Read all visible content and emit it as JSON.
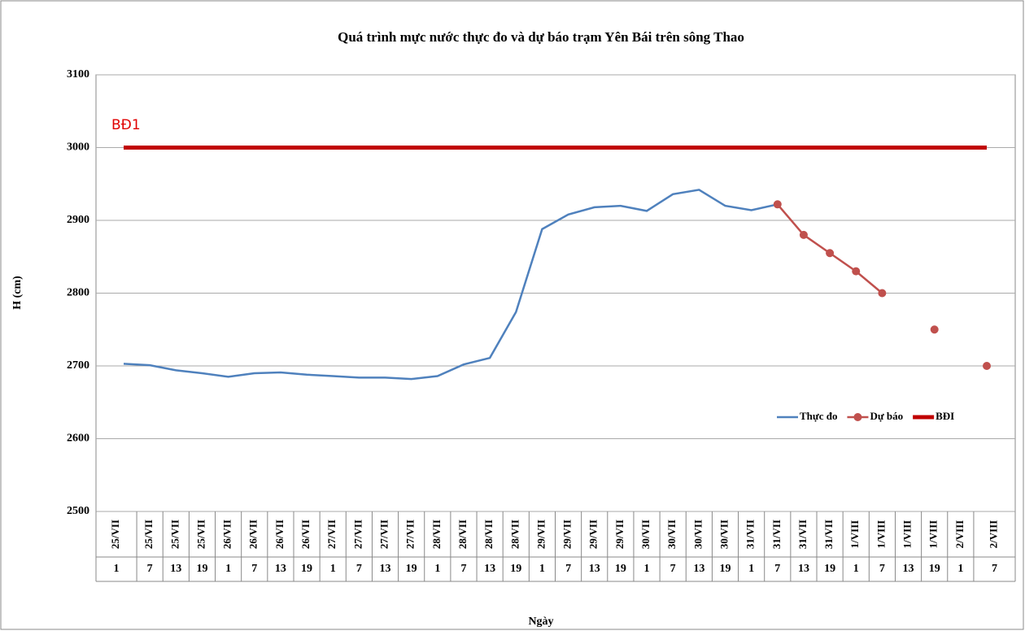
{
  "chart_data": {
    "type": "line",
    "title": "Quá trình mực nước thực đo và dự báo trạm Yên Bái trên sông Thao",
    "y_label": "H (cm)",
    "x_label": "Ngày",
    "annotation": "BĐ1",
    "categories": [
      "25/VII",
      "25/VII",
      "25/VII",
      "25/VII",
      "26/VII",
      "26/VII",
      "26/VII",
      "26/VII",
      "27/VII",
      "27/VII",
      "27/VII",
      "27/VII",
      "28/VII",
      "28/VII",
      "28/VII",
      "28/VII",
      "29/VII",
      "29/VII",
      "29/VII",
      "29/VII",
      "30/VII",
      "30/VII",
      "30/VII",
      "30/VII",
      "31/VII",
      "31/VII",
      "31/VII",
      "31/VII",
      "1/VIII",
      "1/VIII",
      "1/VIII",
      "1/VIII",
      "2/VIII",
      "2/VIII"
    ],
    "hours": [
      1,
      7,
      13,
      19,
      1,
      7,
      13,
      19,
      1,
      7,
      13,
      19,
      1,
      7,
      13,
      19,
      1,
      7,
      13,
      19,
      1,
      7,
      13,
      19,
      1,
      7,
      13,
      19,
      1,
      7,
      13,
      19,
      1,
      7
    ],
    "ylim": [
      2500,
      3100
    ],
    "yticks": [
      2500,
      2600,
      2700,
      2800,
      2900,
      3000,
      3100
    ],
    "grid": true,
    "legend": "right",
    "series": [
      {
        "name": "Thực đo",
        "color": "#4f81bd",
        "markers": false,
        "width": 2.5,
        "values": [
          2703,
          2701,
          2694,
          2690,
          2685,
          2690,
          2691,
          2688,
          2686,
          2684,
          2684,
          2682,
          2686,
          2702,
          2711,
          2774,
          2888,
          2908,
          2918,
          2920,
          2913,
          2936,
          2942,
          2920,
          2914,
          2922,
          null,
          null,
          null,
          null,
          null,
          null,
          null,
          null
        ]
      },
      {
        "name": "Dự báo",
        "color": "#c0504d",
        "markers": true,
        "width": 2.5,
        "values": [
          null,
          null,
          null,
          null,
          null,
          null,
          null,
          null,
          null,
          null,
          null,
          null,
          null,
          null,
          null,
          null,
          null,
          null,
          null,
          null,
          null,
          null,
          null,
          null,
          null,
          2922,
          2880,
          2855,
          2830,
          2800,
          null,
          2750,
          null,
          2700
        ]
      },
      {
        "name": "BĐI",
        "color": "#c00000",
        "markers": false,
        "width": 5,
        "values": [
          3000,
          3000,
          3000,
          3000,
          3000,
          3000,
          3000,
          3000,
          3000,
          3000,
          3000,
          3000,
          3000,
          3000,
          3000,
          3000,
          3000,
          3000,
          3000,
          3000,
          3000,
          3000,
          3000,
          3000,
          3000,
          3000,
          3000,
          3000,
          3000,
          3000,
          3000,
          3000,
          3000,
          3000
        ]
      }
    ]
  }
}
